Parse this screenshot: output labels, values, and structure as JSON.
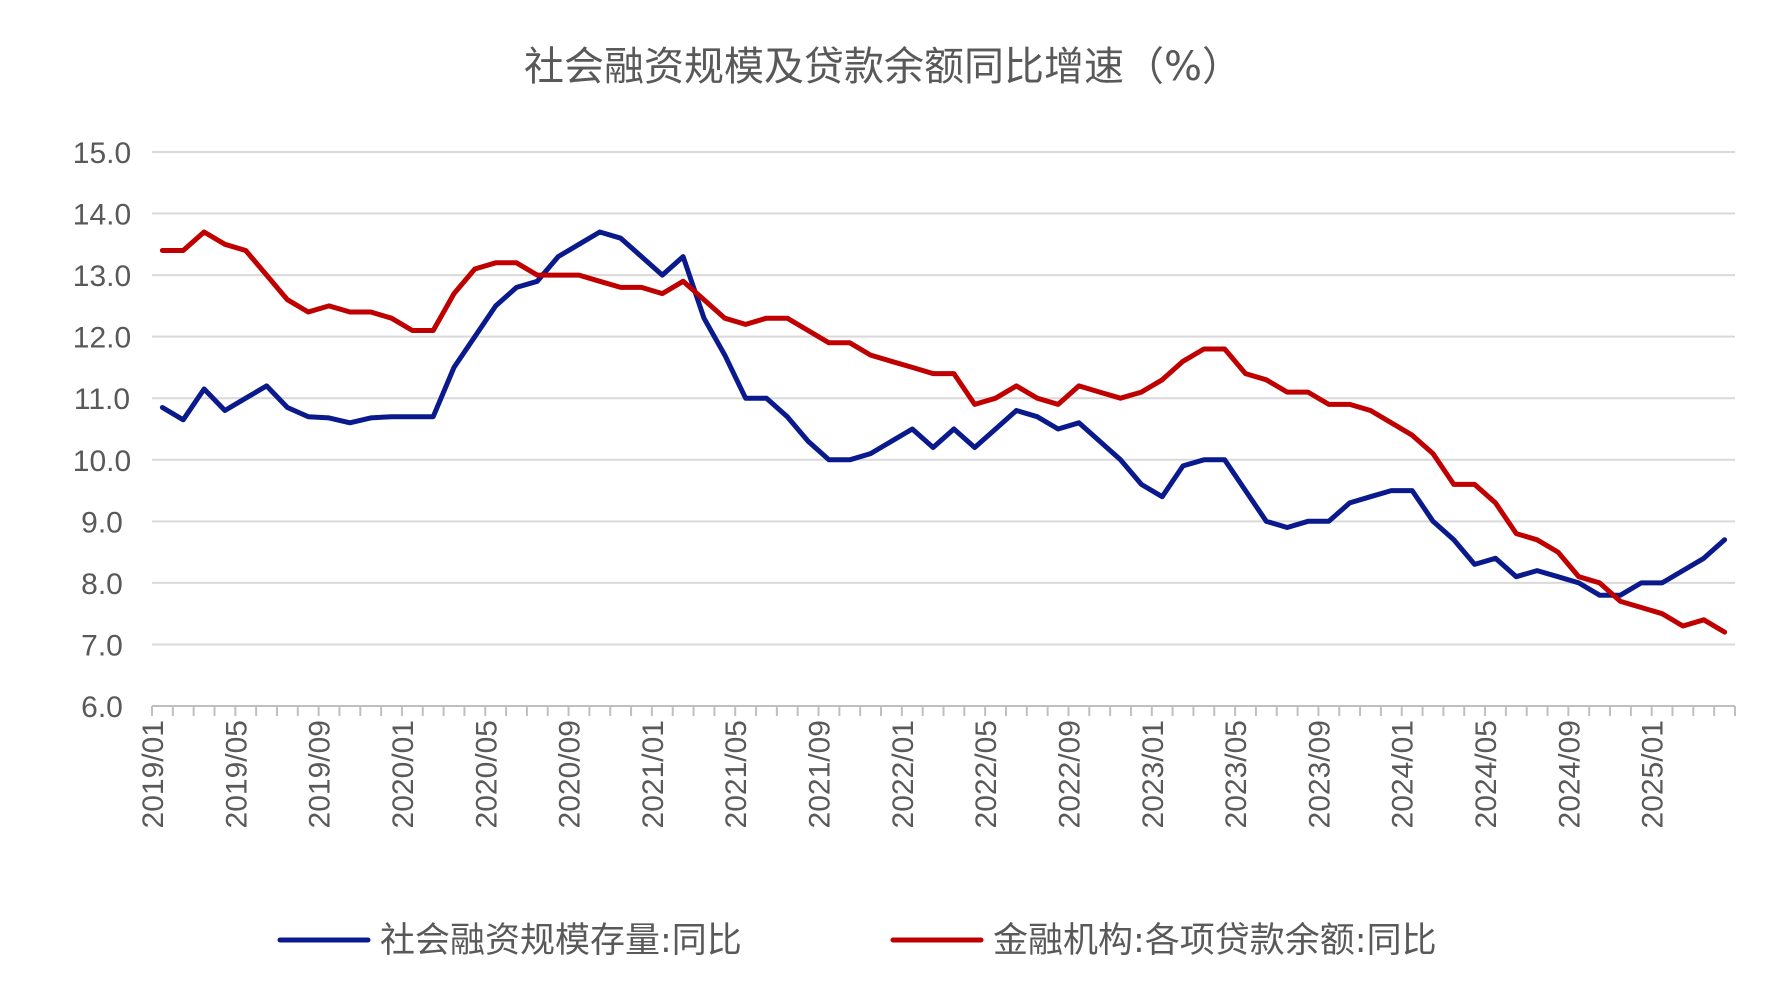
{
  "chart_data": {
    "type": "line",
    "title": "社会融资规模及贷款余额同比增速（%）",
    "ylim": [
      6.0,
      15.0
    ],
    "y_ticks": [
      "15.0",
      "14.0",
      "13.0",
      "12.0",
      "11.0",
      "10.0",
      "9.0",
      "8.0",
      "7.0",
      "6.0"
    ],
    "x_tick_labels": [
      "2019/01",
      "2019/05",
      "2019/09",
      "2020/01",
      "2020/05",
      "2020/09",
      "2021/01",
      "2021/05",
      "2021/09",
      "2022/01",
      "2022/05",
      "2022/09",
      "2023/01",
      "2023/05",
      "2023/09",
      "2024/01",
      "2024/05",
      "2024/09",
      "2025/01"
    ],
    "x_start": "2019/01",
    "x_end": "2025/05",
    "grid": true,
    "legend_position": "bottom",
    "series": [
      {
        "name": "社会融资规模存量:同比",
        "color": "#0a1a8c",
        "values": [
          10.85,
          10.65,
          11.15,
          10.8,
          11.0,
          11.2,
          10.85,
          10.7,
          10.68,
          10.6,
          10.68,
          10.7,
          10.7,
          10.7,
          11.5,
          12.0,
          12.5,
          12.8,
          12.9,
          13.3,
          13.5,
          13.7,
          13.6,
          13.3,
          13.0,
          13.3,
          12.3,
          11.7,
          11.0,
          11.0,
          10.7,
          10.3,
          10.0,
          10.0,
          10.1,
          10.3,
          10.5,
          10.2,
          10.5,
          10.2,
          10.5,
          10.8,
          10.7,
          10.5,
          10.6,
          10.3,
          10.0,
          9.6,
          9.4,
          9.9,
          10.0,
          10.0,
          9.5,
          9.0,
          8.9,
          9.0,
          9.0,
          9.3,
          9.4,
          9.5,
          9.5,
          9.0,
          8.7,
          8.3,
          8.4,
          8.1,
          8.2,
          8.1,
          8.0,
          7.8,
          7.8,
          8.0,
          8.0,
          8.2,
          8.4,
          8.7
        ]
      },
      {
        "name": "金融机构:各项贷款余额:同比",
        "color": "#c00000",
        "values": [
          13.4,
          13.4,
          13.7,
          13.5,
          13.4,
          13.0,
          12.6,
          12.4,
          12.5,
          12.4,
          12.4,
          12.3,
          12.1,
          12.1,
          12.7,
          13.1,
          13.2,
          13.2,
          13.0,
          13.0,
          13.0,
          12.9,
          12.8,
          12.8,
          12.7,
          12.9,
          12.6,
          12.3,
          12.2,
          12.3,
          12.3,
          12.1,
          11.9,
          11.9,
          11.7,
          11.6,
          11.5,
          11.4,
          11.4,
          10.9,
          11.0,
          11.2,
          11.0,
          10.9,
          11.2,
          11.1,
          11.0,
          11.1,
          11.3,
          11.6,
          11.8,
          11.8,
          11.4,
          11.3,
          11.1,
          11.1,
          10.9,
          10.9,
          10.8,
          10.6,
          10.4,
          10.1,
          9.6,
          9.6,
          9.3,
          8.8,
          8.7,
          8.5,
          8.1,
          8.0,
          7.7,
          7.6,
          7.5,
          7.3,
          7.4,
          7.2
        ]
      }
    ]
  }
}
